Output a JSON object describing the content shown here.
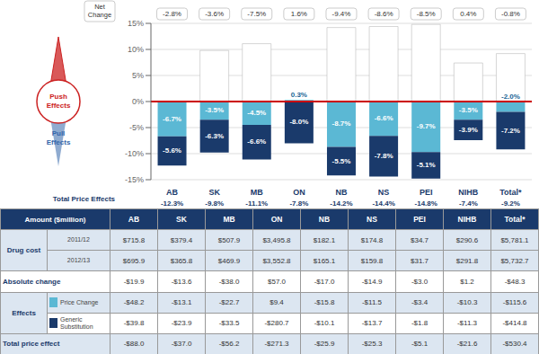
{
  "chart_data": {
    "type": "bar",
    "stacked": true,
    "grid": true,
    "categories": [
      "AB",
      "SK",
      "MB",
      "ON",
      "NB",
      "NS",
      "PEI",
      "NIHB",
      "Total*"
    ],
    "series": [
      {
        "color": "#5bb8d4",
        "values": [
          -6.7,
          -3.5,
          -4.5,
          0.3,
          -8.7,
          -6.6,
          -9.7,
          -3.5,
          -2.0
        ],
        "data_labels": true,
        "value_labels": [
          "-6.7%",
          "-3.5%",
          "-4.5%",
          "0.3%",
          "-8.7%",
          "-6.6%",
          "-9.7%",
          "-3.5%",
          "-2.0%"
        ]
      },
      {
        "color": "#1a3a6b",
        "values": [
          -5.6,
          -6.3,
          -6.6,
          -8.0,
          -5.5,
          -7.8,
          -5.1,
          -3.9,
          -7.2
        ],
        "data_labels": true,
        "value_labels": [
          "-5.6%",
          "-6.3%",
          "-6.6%",
          "-8.0%",
          "-5.5%",
          "-7.8%",
          "-5.1%",
          "-3.9%",
          "-7.2%"
        ]
      },
      {
        "color": "#ffffff",
        "values": [
          0.0,
          9.8,
          11.1,
          0.0,
          14.2,
          14.4,
          14.8,
          7.4,
          9.2
        ]
      }
    ],
    "ylim": [
      -15,
      15
    ],
    "yticks": [
      {
        "value": -15,
        "label": "-15%"
      },
      {
        "value": -10,
        "label": "-10%"
      },
      {
        "value": -5,
        "label": "-5%"
      },
      {
        "value": 0,
        "label": "0%"
      },
      {
        "value": 5,
        "label": "5%"
      },
      {
        "value": 10,
        "label": "10%"
      },
      {
        "value": 15,
        "label": "15%"
      }
    ],
    "zero_line": {
      "y": 0,
      "color": "#cc0000"
    },
    "net_change_label": "Net\nChange",
    "net_change": [
      "-2.8%",
      "-3.6%",
      "-7.5%",
      "1.6%",
      "-9.4%",
      "-8.6%",
      "-8.5%",
      "0.4%",
      "-0.8%"
    ],
    "total_price_effects_label": "Total Price Effects",
    "total_price_effects": [
      "-12.3%",
      "-9.8%",
      "-11.1%",
      "-7.8%",
      "-14.2%",
      "-14.4%",
      "-14.8%",
      "-7.4%",
      "-9.2%"
    ],
    "push_label": [
      "Push",
      "Effects"
    ],
    "push_color": "#cc2222",
    "pull_label": [
      "Pull",
      "Effects"
    ],
    "pull_color": "#3366aa",
    "table": {
      "header": "Amount ($million)",
      "header_background": "#1a3a6b",
      "rows": [
        {
          "group": "Drug cost",
          "label": "2011/12",
          "background": "#dce6f1",
          "cells": [
            "$715.8",
            "$379.4",
            "$507.9",
            "$3,495.8",
            "$182.1",
            "$174.8",
            "$34.7",
            "$290.6",
            "$5,781.1"
          ]
        },
        {
          "group": "Drug cost",
          "label": "2012/13",
          "background": "#dce6f1",
          "cells": [
            "$695.9",
            "$365.8",
            "$469.9",
            "$3,552.8",
            "$165.1",
            "$159.8",
            "$31.7",
            "$291.8",
            "$5,732.7"
          ]
        },
        {
          "label": "Absolute change",
          "background": "#ffffff",
          "cells": [
            "-$19.9",
            "-$13.6",
            "-$38.0",
            "$57.0",
            "-$17.0",
            "-$14.9",
            "-$3.0",
            "$1.2",
            "-$48.3"
          ]
        },
        {
          "group": "Effects",
          "label": "Price Change",
          "color": "#5bb8d4",
          "background": "#dce6f1",
          "cells": [
            "-$48.2",
            "-$13.1",
            "-$22.7",
            "$9.4",
            "-$15.8",
            "-$11.5",
            "-$3.4",
            "-$10.3",
            "-$115.6"
          ]
        },
        {
          "group": "Effects",
          "label": "Generic\nSubstitution",
          "color": "#1a3a6b",
          "background": "#ffffff",
          "cells": [
            "-$39.8",
            "-$23.9",
            "-$33.5",
            "-$280.7",
            "-$10.1",
            "-$13.7",
            "-$1.8",
            "-$11.3",
            "-$414.8"
          ]
        },
        {
          "label": "Total price effect",
          "background": "#dce6f1",
          "cells": [
            "-$88.0",
            "-$37.0",
            "-$56.2",
            "-$271.3",
            "-$25.9",
            "-$25.3",
            "-$5.1",
            "-$21.6",
            "-$530.4"
          ]
        }
      ]
    }
  }
}
